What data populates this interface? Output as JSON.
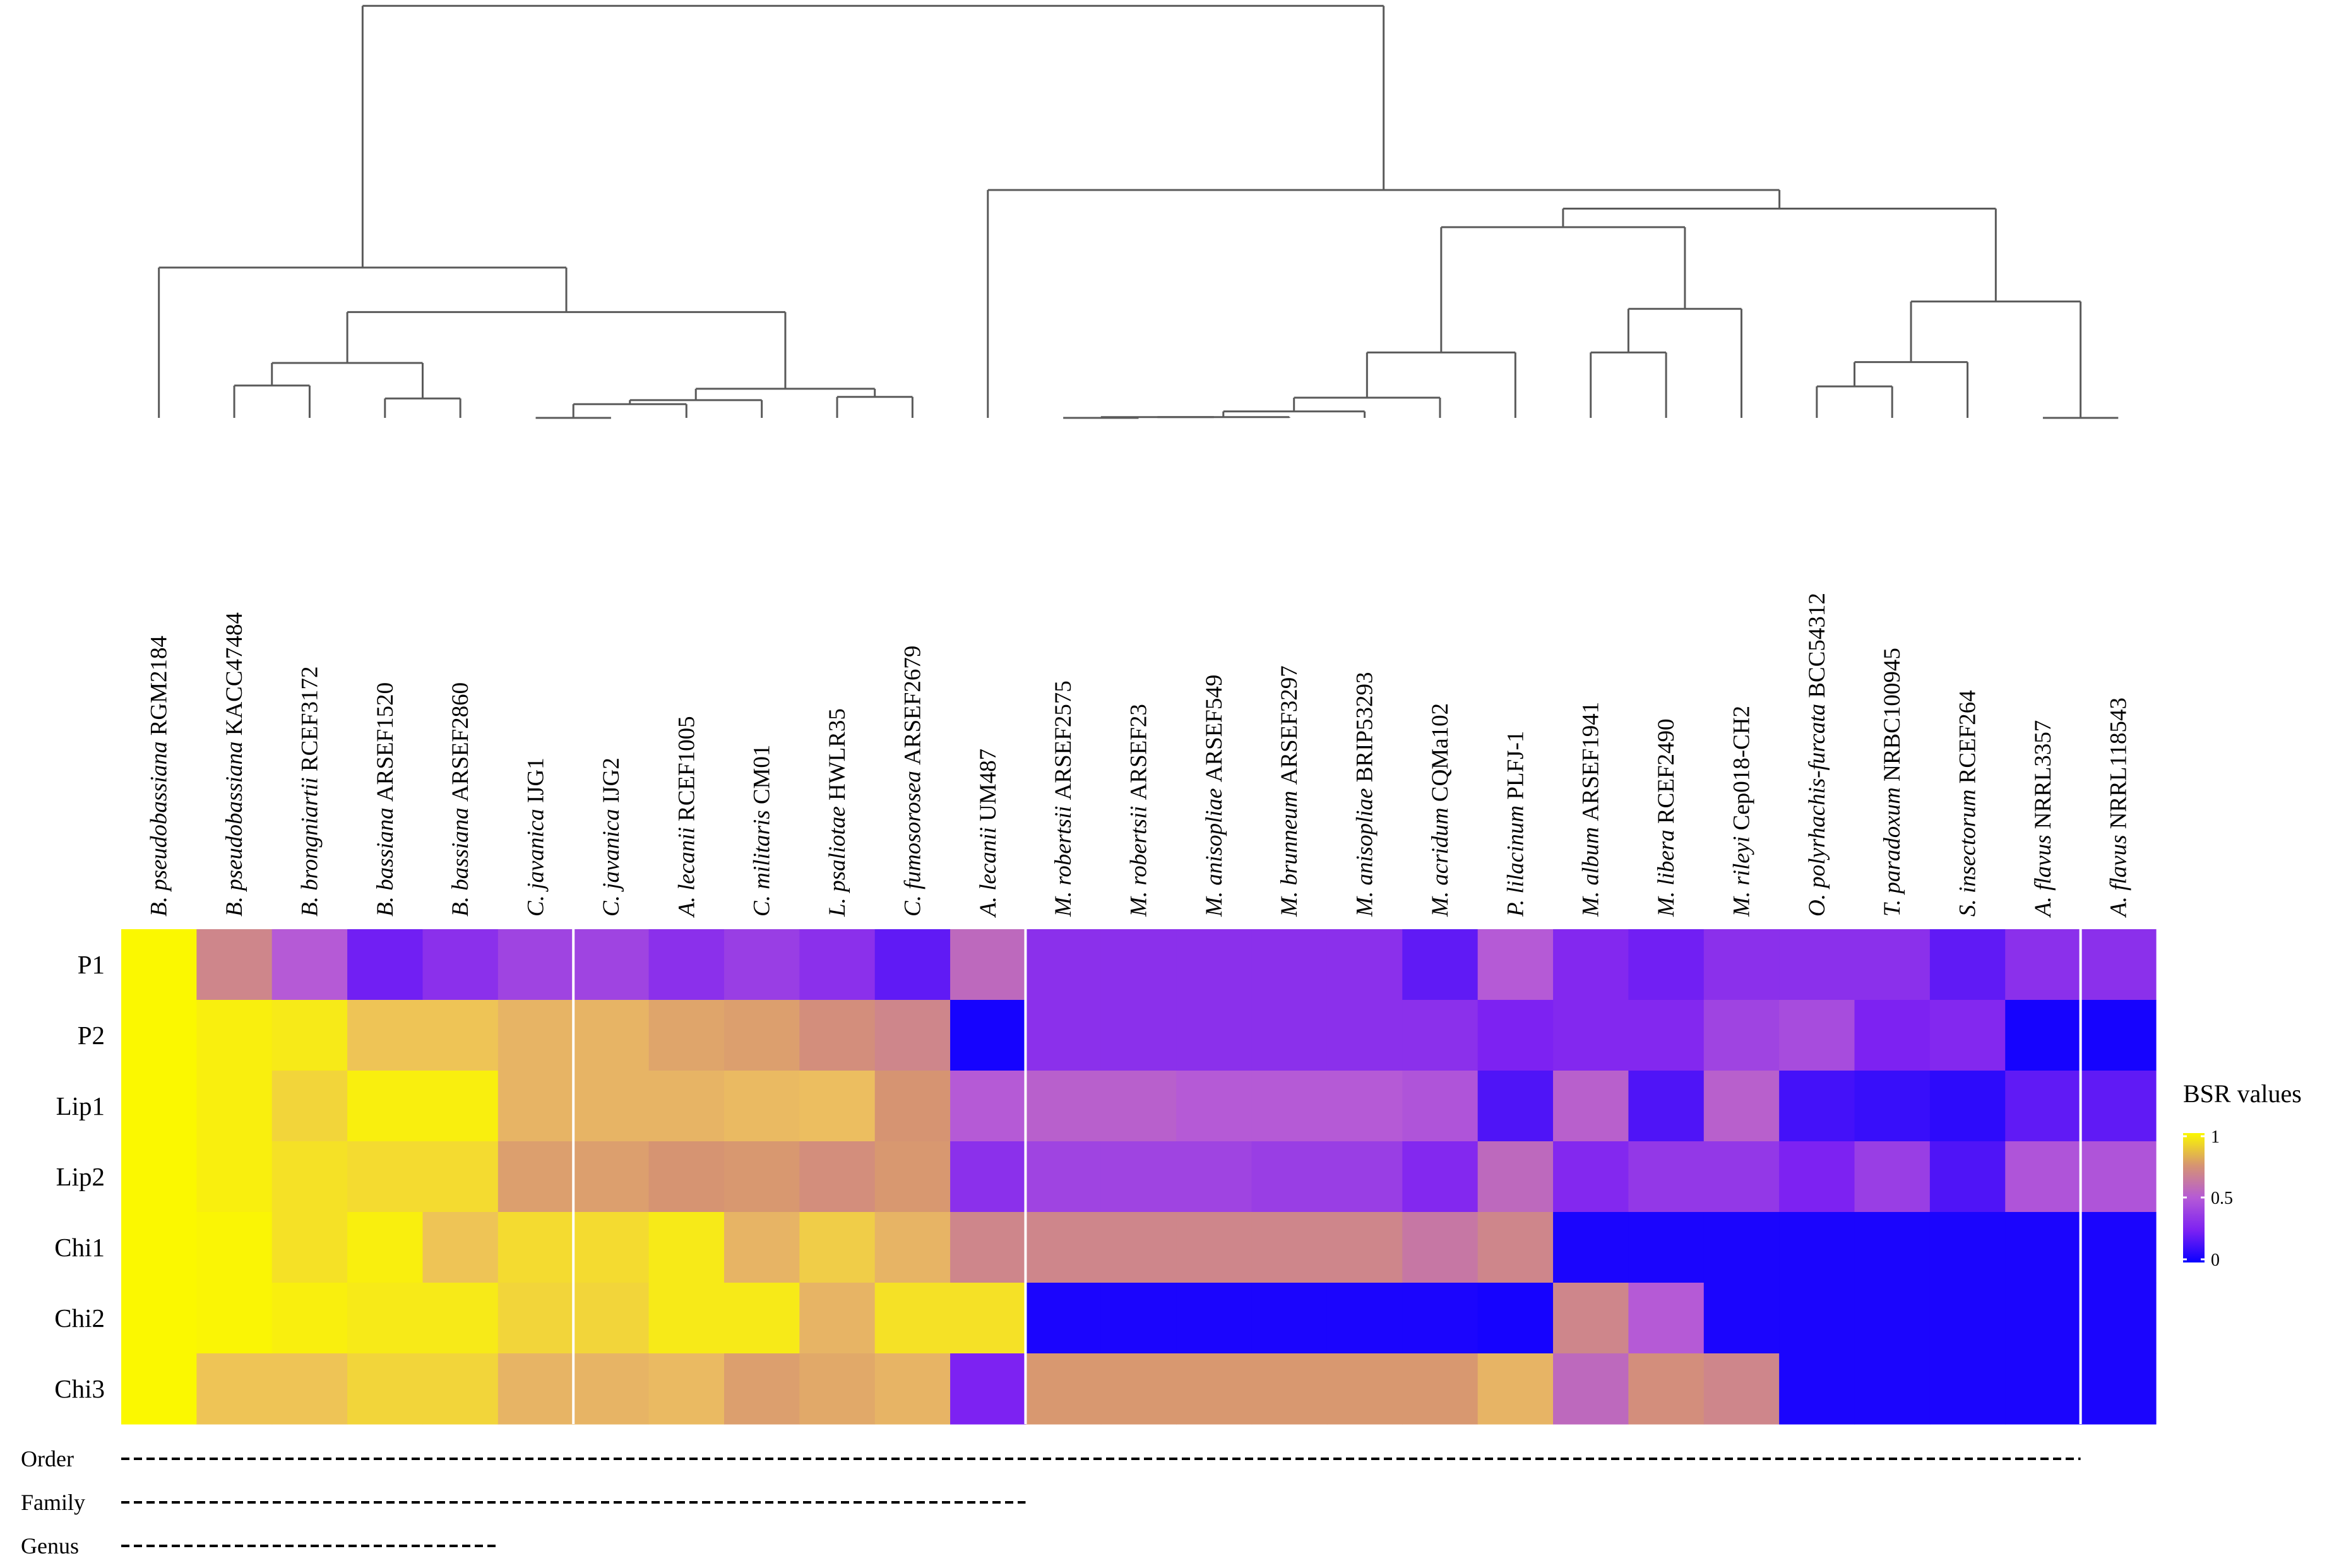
{
  "chart_data": {
    "type": "heatmap",
    "title": "",
    "columns": [
      {
        "italic": "B. pseudobassiana",
        "strain": "RGM2184"
      },
      {
        "italic": "B. pseudobassiana",
        "strain": "KACC47484"
      },
      {
        "italic": "B. brongniartii",
        "strain": "RCEF3172"
      },
      {
        "italic": "B. bassiana",
        "strain": "ARSEF1520"
      },
      {
        "italic": "B. bassiana",
        "strain": "ARSEF2860"
      },
      {
        "italic": "C. javanica",
        "strain": "IJG1"
      },
      {
        "italic": "C. javanica",
        "strain": "IJG2"
      },
      {
        "italic": "A. lecanii",
        "strain": "RCEF1005"
      },
      {
        "italic": "C. militaris",
        "strain": "CM01"
      },
      {
        "italic": "L. psaliotae",
        "strain": "HWLR35"
      },
      {
        "italic": "C. fumosorosea",
        "strain": "ARSEF2679"
      },
      {
        "italic": "A. lecanii",
        "strain": "UM487"
      },
      {
        "italic": "M. robertsii",
        "strain": "ARSEF2575"
      },
      {
        "italic": "M. robertsii",
        "strain": "ARSEF23"
      },
      {
        "italic": "M. anisopliae",
        "strain": "ARSEF549"
      },
      {
        "italic": "M. brunneum",
        "strain": "ARSEF3297"
      },
      {
        "italic": "M. anisopliae",
        "strain": "BRIP53293"
      },
      {
        "italic": "M. acridum",
        "strain": "CQMa102"
      },
      {
        "italic": "P. lilacinum",
        "strain": "PLFJ-1"
      },
      {
        "italic": "M. album",
        "strain": "ARSEF1941"
      },
      {
        "italic": "M. libera",
        "strain": "RCEF2490"
      },
      {
        "italic": "M. rileyi",
        "strain": "Cep018-CH2"
      },
      {
        "italic": "O. polyrhachis-furcata",
        "strain": "BCC54312"
      },
      {
        "italic": "T. paradoxum",
        "strain": "NRBC100945"
      },
      {
        "italic": "S. insectorum",
        "strain": "RCEF264"
      },
      {
        "italic": "A. flavus",
        "strain": "NRRL3357"
      },
      {
        "italic": "A. flavus",
        "strain": "NRRL118543"
      }
    ],
    "rows": [
      "P1",
      "P2",
      "Lip1",
      "Lip2",
      "Chi1",
      "Chi2",
      "Chi3"
    ],
    "values": [
      [
        1.0,
        0.55,
        0.4,
        0.18,
        0.25,
        0.32,
        0.32,
        0.25,
        0.3,
        0.25,
        0.15,
        0.45,
        0.25,
        0.25,
        0.25,
        0.25,
        0.25,
        0.15,
        0.4,
        0.22,
        0.18,
        0.25,
        0.25,
        0.25,
        0.15,
        0.25,
        0.25
      ],
      [
        1.0,
        0.97,
        0.95,
        0.82,
        0.82,
        0.75,
        0.75,
        0.68,
        0.65,
        0.58,
        0.55,
        0.02,
        0.25,
        0.25,
        0.25,
        0.25,
        0.25,
        0.25,
        0.2,
        0.22,
        0.22,
        0.32,
        0.35,
        0.2,
        0.22,
        0.02,
        0.02
      ],
      [
        1.0,
        0.97,
        0.88,
        0.97,
        0.97,
        0.75,
        0.75,
        0.75,
        0.78,
        0.8,
        0.6,
        0.4,
        0.42,
        0.42,
        0.4,
        0.4,
        0.4,
        0.38,
        0.12,
        0.42,
        0.12,
        0.42,
        0.1,
        0.08,
        0.06,
        0.15,
        0.15
      ],
      [
        1.0,
        0.97,
        0.92,
        0.9,
        0.9,
        0.65,
        0.65,
        0.6,
        0.62,
        0.58,
        0.62,
        0.25,
        0.32,
        0.32,
        0.32,
        0.3,
        0.3,
        0.22,
        0.45,
        0.22,
        0.28,
        0.28,
        0.2,
        0.3,
        0.12,
        0.38,
        0.38
      ],
      [
        1.0,
        0.99,
        0.92,
        0.97,
        0.82,
        0.9,
        0.9,
        0.95,
        0.75,
        0.85,
        0.75,
        0.55,
        0.55,
        0.55,
        0.55,
        0.55,
        0.55,
        0.5,
        0.55,
        0.03,
        0.03,
        0.03,
        0.03,
        0.03,
        0.03,
        0.03,
        0.03
      ],
      [
        1.0,
        0.99,
        0.97,
        0.95,
        0.95,
        0.88,
        0.88,
        0.95,
        0.95,
        0.75,
        0.92,
        0.92,
        0.03,
        0.03,
        0.03,
        0.03,
        0.03,
        0.03,
        0.02,
        0.55,
        0.4,
        0.03,
        0.03,
        0.03,
        0.03,
        0.03,
        0.03
      ],
      [
        1.0,
        0.82,
        0.82,
        0.88,
        0.88,
        0.75,
        0.75,
        0.78,
        0.65,
        0.7,
        0.75,
        0.2,
        0.62,
        0.62,
        0.62,
        0.62,
        0.62,
        0.62,
        0.75,
        0.45,
        0.58,
        0.55,
        0.03,
        0.03,
        0.03,
        0.03,
        0.03
      ]
    ],
    "column_group_separators_after": [
      5,
      11,
      25
    ],
    "legend": {
      "title": "BSR values",
      "ticks": [
        "1",
        "0.5",
        "0"
      ],
      "range": [
        0,
        1
      ],
      "position": "right"
    },
    "color_scale": {
      "low": "#0a00ff",
      "mid": "#a13de8",
      "high": "#fbf800",
      "steps": [
        "#0a00ff",
        "#7d22f2",
        "#b55ad6",
        "#d69472",
        "#ecbe60",
        "#fbf800"
      ]
    },
    "dendrogram": {
      "nodes": [
        {
          "id": "n1",
          "left": "B. pseudobassiana KACC47484",
          "right": "B. brongniartii RCEF3172",
          "height": 0.04
        },
        {
          "id": "n2",
          "left": "B. bassiana ARSEF1520",
          "right": "B. bassiana ARSEF2860",
          "height": 0.024
        },
        {
          "id": "n3",
          "left": "n1",
          "right": "n2",
          "height": 0.068
        },
        {
          "id": "n4",
          "left": "C. javanica IJG1",
          "right": "C. javanica IJG2",
          "height": 0.0
        },
        {
          "id": "n5",
          "left": "n4",
          "right": "A. lecanii RCEF1005",
          "height": 0.017
        },
        {
          "id": "n6",
          "left": "n5",
          "right": "C. militaris CM01",
          "height": 0.022
        },
        {
          "id": "n7",
          "left": "L. psaliotae HWLR35",
          "right": "C. fumosorosea ARSEF2679",
          "height": 0.026
        },
        {
          "id": "n8",
          "left": "n6",
          "right": "n7",
          "height": 0.036
        },
        {
          "id": "n9",
          "left": "n3",
          "right": "n8",
          "height": 0.131
        },
        {
          "id": "n10",
          "left": "B. pseudobassiana RGM2184",
          "right": "n9",
          "height": 0.186
        },
        {
          "id": "n11",
          "left": "M. robertsii ARSEF2575",
          "right": "M. robertsii ARSEF23",
          "height": 0.0
        },
        {
          "id": "n12",
          "left": "n11",
          "right": "M. anisopliae ARSEF549",
          "height": 0.001
        },
        {
          "id": "n13",
          "left": "n12",
          "right": "M. brunneum ARSEF3297",
          "height": 0.001
        },
        {
          "id": "n14",
          "left": "n13",
          "right": "M. anisopliae BRIP53293",
          "height": 0.008
        },
        {
          "id": "n15",
          "left": "n14",
          "right": "M. acridum CQMa102",
          "height": 0.025
        },
        {
          "id": "n16",
          "left": "n15",
          "right": "P. lilacinum PLFJ-1",
          "height": 0.081
        },
        {
          "id": "n17",
          "left": "M. album ARSEF1941",
          "right": "M. libera RCEF2490",
          "height": 0.081
        },
        {
          "id": "n18",
          "left": "n17",
          "right": "M. rileyi Cep018-CH2",
          "height": 0.135
        },
        {
          "id": "n19",
          "left": "n16",
          "right": "n18",
          "height": 0.236
        },
        {
          "id": "n20",
          "left": "O. polyrhachis-furcata BCC54312",
          "right": "T. paradoxum NRBC100945",
          "height": 0.039
        },
        {
          "id": "n21",
          "left": "n20",
          "right": "S. insectorum RCEF264",
          "height": 0.069
        },
        {
          "id": "n22",
          "left": "A. flavus NRRL3357",
          "right": "A. flavus NRRL118543",
          "height": 0.0
        },
        {
          "id": "n23",
          "left": "n21",
          "right": "n22",
          "height": 0.144
        },
        {
          "id": "n24",
          "left": "n19",
          "right": "n23",
          "height": 0.259
        },
        {
          "id": "n25",
          "left": "n24",
          "right": "A. lecanii UM487",
          "height": 0.282
        },
        {
          "id": "n26",
          "left": "n25",
          "right": "n10",
          "height": 0.51
        },
        {
          "id": "root",
          "left": "n26",
          "right": "n10",
          "height": 0.51
        }
      ]
    },
    "tracks": [
      {
        "label": "Order",
        "span_columns": [
          0,
          25
        ]
      },
      {
        "label": "Family",
        "span_columns": [
          0,
          11
        ]
      },
      {
        "label": "Genus",
        "span_columns": [
          0,
          4
        ]
      }
    ]
  }
}
